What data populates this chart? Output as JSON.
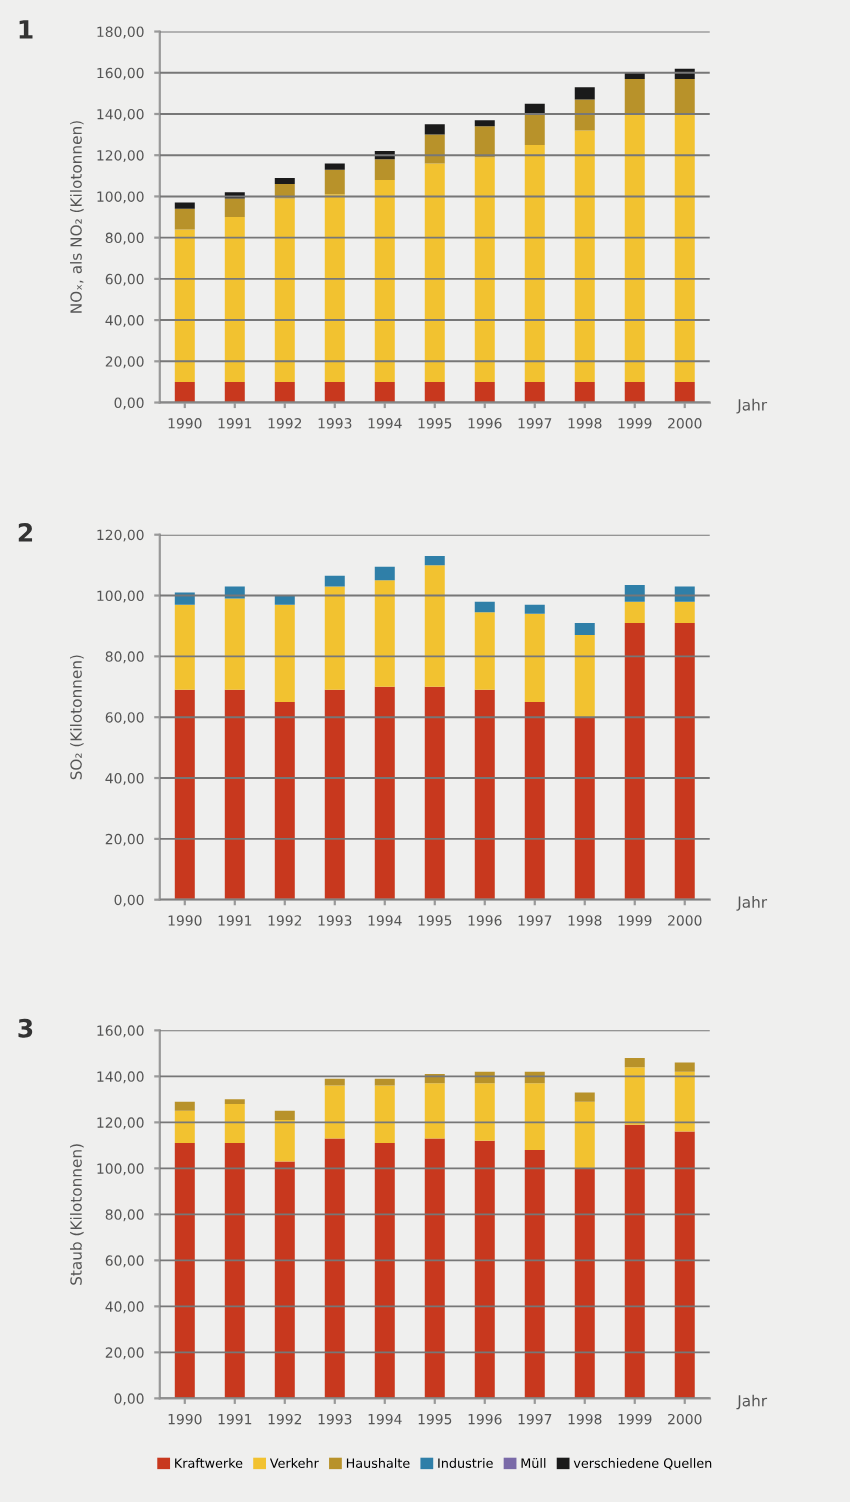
{
  "chart_data": [
    {
      "type": "bar",
      "title": "1",
      "stacked": true,
      "xlabel": "Jahr",
      "ylabel": "NOₓ, als NO₂ (Kilotonnen)",
      "grid": "y",
      "categories": [
        "1990",
        "1991",
        "1992",
        "1993",
        "1994",
        "1995",
        "1996",
        "1997",
        "1998",
        "1999",
        "2000"
      ],
      "ylim": [
        0,
        180
      ],
      "yticks": [
        {
          "value": 0,
          "label": "0,00"
        },
        {
          "value": 20,
          "label": "20,00"
        },
        {
          "value": 40,
          "label": "40,00"
        },
        {
          "value": 60,
          "label": "60,00"
        },
        {
          "value": 80,
          "label": "80,00"
        },
        {
          "value": 100,
          "label": "100,00"
        },
        {
          "value": 120,
          "label": "120,00"
        },
        {
          "value": 140,
          "label": "140,00"
        },
        {
          "value": 160,
          "label": "160,00"
        },
        {
          "value": 180,
          "label": "180,00"
        }
      ],
      "series": [
        {
          "color": "#c8381e",
          "values": [
            10,
            10,
            10,
            10,
            10,
            10,
            10,
            10,
            10,
            10,
            10
          ]
        },
        {
          "color": "#f2c230",
          "values": [
            74,
            80,
            89,
            91,
            98,
            106,
            109,
            115,
            122,
            130,
            130
          ]
        },
        {
          "color": "#b8922a",
          "values": [
            10,
            9,
            7,
            12,
            10,
            14,
            15,
            15,
            15,
            17,
            17
          ]
        },
        {
          "color": "#1a1a1a",
          "values": [
            3,
            3,
            3,
            3,
            4,
            5,
            3,
            5,
            6,
            3,
            5
          ]
        }
      ]
    },
    {
      "type": "bar",
      "title": "2",
      "stacked": true,
      "xlabel": "Jahr",
      "ylabel": "SO₂ (Kilotonnen)",
      "grid": "y",
      "categories": [
        "1990",
        "1991",
        "1992",
        "1993",
        "1994",
        "1995",
        "1996",
        "1997",
        "1998",
        "1999",
        "2000"
      ],
      "ylim": [
        0,
        120
      ],
      "yticks": [
        {
          "value": 0,
          "label": "0,00"
        },
        {
          "value": 20,
          "label": "20,00"
        },
        {
          "value": 40,
          "label": "40,00"
        },
        {
          "value": 60,
          "label": "60,00"
        },
        {
          "value": 80,
          "label": "80,00"
        },
        {
          "value": 100,
          "label": "100,00"
        },
        {
          "value": 120,
          "label": "120,00"
        }
      ],
      "series": [
        {
          "color": "#c8381e",
          "values": [
            69,
            69,
            65,
            69,
            70,
            70,
            69,
            65,
            60,
            91,
            91
          ]
        },
        {
          "color": "#f2c230",
          "values": [
            28,
            30,
            32,
            34,
            35,
            40,
            25.5,
            29,
            27,
            7,
            7
          ]
        },
        {
          "color": "#2f7fa8",
          "values": [
            4,
            4,
            3,
            3.5,
            4.5,
            3,
            3.5,
            3,
            4,
            5.5,
            5
          ]
        }
      ]
    },
    {
      "type": "bar",
      "title": "3",
      "stacked": true,
      "xlabel": "Jahr",
      "ylabel": "Staub (Kilotonnen)",
      "grid": "y",
      "legend": "bottom",
      "categories": [
        "1990",
        "1991",
        "1992",
        "1993",
        "1994",
        "1995",
        "1996",
        "1997",
        "1998",
        "1999",
        "2000"
      ],
      "ylim": [
        0,
        160
      ],
      "yticks": [
        {
          "value": 0,
          "label": "0,00"
        },
        {
          "value": 20,
          "label": "20,00"
        },
        {
          "value": 40,
          "label": "40,00"
        },
        {
          "value": 60,
          "label": "60,00"
        },
        {
          "value": 80,
          "label": "80,00"
        },
        {
          "value": 100,
          "label": "100,00"
        },
        {
          "value": 120,
          "label": "120,00"
        },
        {
          "value": 140,
          "label": "140,00"
        },
        {
          "value": 160,
          "label": "160,00"
        }
      ],
      "series": [
        {
          "name": "Kraftwerke",
          "color": "#c8381e",
          "values": [
            111,
            111,
            103,
            113,
            111,
            113,
            112,
            108,
            100,
            119,
            116
          ]
        },
        {
          "name": "Verkehr",
          "color": "#f2c230",
          "values": [
            14,
            17,
            18,
            23,
            25,
            24,
            25,
            29,
            29,
            25,
            26
          ]
        },
        {
          "name": "Haushalte",
          "color": "#b8922a",
          "values": [
            4,
            2,
            4,
            3,
            3,
            4,
            5,
            5,
            4,
            4,
            4
          ]
        },
        {
          "name": "Industrie",
          "color": "#2f7fa8",
          "values": [
            null,
            null,
            null,
            null,
            null,
            null,
            null,
            null,
            null,
            null,
            null
          ]
        },
        {
          "name": "Müll",
          "color": "#7a6aa8",
          "values": [
            null,
            null,
            null,
            null,
            null,
            null,
            null,
            null,
            null,
            null,
            null
          ]
        },
        {
          "name": "verschiedene Quellen",
          "color": "#1a1a1a",
          "values": [
            null,
            null,
            null,
            null,
            null,
            null,
            null,
            null,
            null,
            null,
            null
          ]
        }
      ]
    }
  ]
}
